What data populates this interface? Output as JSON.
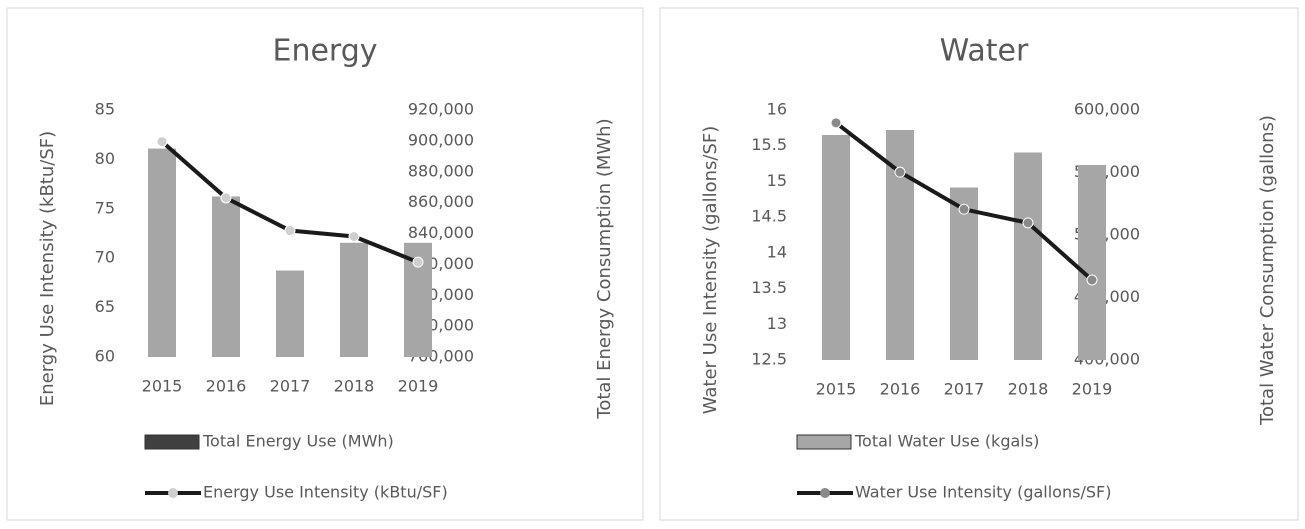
{
  "chart_data": [
    {
      "type": "bar_line",
      "title": "Energy",
      "y_label": "Energy Use Intensity (kBtu/SF)",
      "y2_label": "Total Energy Consumption (MWh)",
      "categories": [
        "2015",
        "2016",
        "2017",
        "2018",
        "2019"
      ],
      "series": [
        {
          "name": "Total Energy Use (MWh)",
          "type": "bar",
          "axis": "y2",
          "color": "#a6a6a6",
          "legend_color": "#404040",
          "values": [
            895000,
            864000,
            816000,
            834000,
            834000
          ]
        },
        {
          "name": "Energy Use Intensity (kBtu/SF)",
          "type": "line",
          "axis": "y",
          "color": "#1a1a1a",
          "marker_color": "#cfcfcf",
          "values": [
            81.8,
            76.1,
            72.8,
            72.2,
            69.6
          ]
        }
      ],
      "ylim": [
        60,
        85
      ],
      "yticks": [
        60,
        65,
        70,
        75,
        80,
        85
      ],
      "y2lim": [
        760000,
        920000
      ],
      "y2ticks": [
        {
          "value": 760000,
          "label": "760,000"
        },
        {
          "value": 780000,
          "label": "780,000"
        },
        {
          "value": 800000,
          "label": "800,000"
        },
        {
          "value": 820000,
          "label": "820,000"
        },
        {
          "value": 840000,
          "label": "840,000"
        },
        {
          "value": 860000,
          "label": "860,000"
        },
        {
          "value": 880000,
          "label": "880,000"
        },
        {
          "value": 900000,
          "label": "900,000"
        },
        {
          "value": 920000,
          "label": "920,000"
        }
      ],
      "legend": "bottom"
    },
    {
      "type": "bar_line",
      "title": "Water",
      "y_label": "Water Use Intensity (gallons/SF)",
      "y2_label": "Total Water Consumption (gallons)",
      "categories": [
        "2015",
        "2016",
        "2017",
        "2018",
        "2019"
      ],
      "series": [
        {
          "name": "Total Water Use (kgals)",
          "type": "bar",
          "axis": "y2",
          "color": "#a6a6a6",
          "legend_color": "#a6a6a6",
          "values": [
            580000,
            584000,
            538000,
            566000,
            556000
          ]
        },
        {
          "name": "Water Use Intensity (gallons/SF)",
          "type": "line",
          "axis": "y",
          "color": "#1a1a1a",
          "marker_color": "#8a8a8a",
          "values": [
            15.82,
            15.13,
            14.61,
            14.42,
            13.62
          ]
        }
      ],
      "ylim": [
        12.5,
        16
      ],
      "yticks": [
        12.5,
        13,
        13.5,
        14,
        14.5,
        15,
        15.5,
        16
      ],
      "y2lim": [
        400000,
        600000
      ],
      "y2ticks": [
        {
          "value": 400000,
          "label": "400,000"
        },
        {
          "value": 450000,
          "label": "450,000"
        },
        {
          "value": 500000,
          "label": "500,000"
        },
        {
          "value": 550000,
          "label": "550,000"
        },
        {
          "value": 600000,
          "label": "600,000"
        }
      ],
      "legend": "bottom"
    }
  ]
}
